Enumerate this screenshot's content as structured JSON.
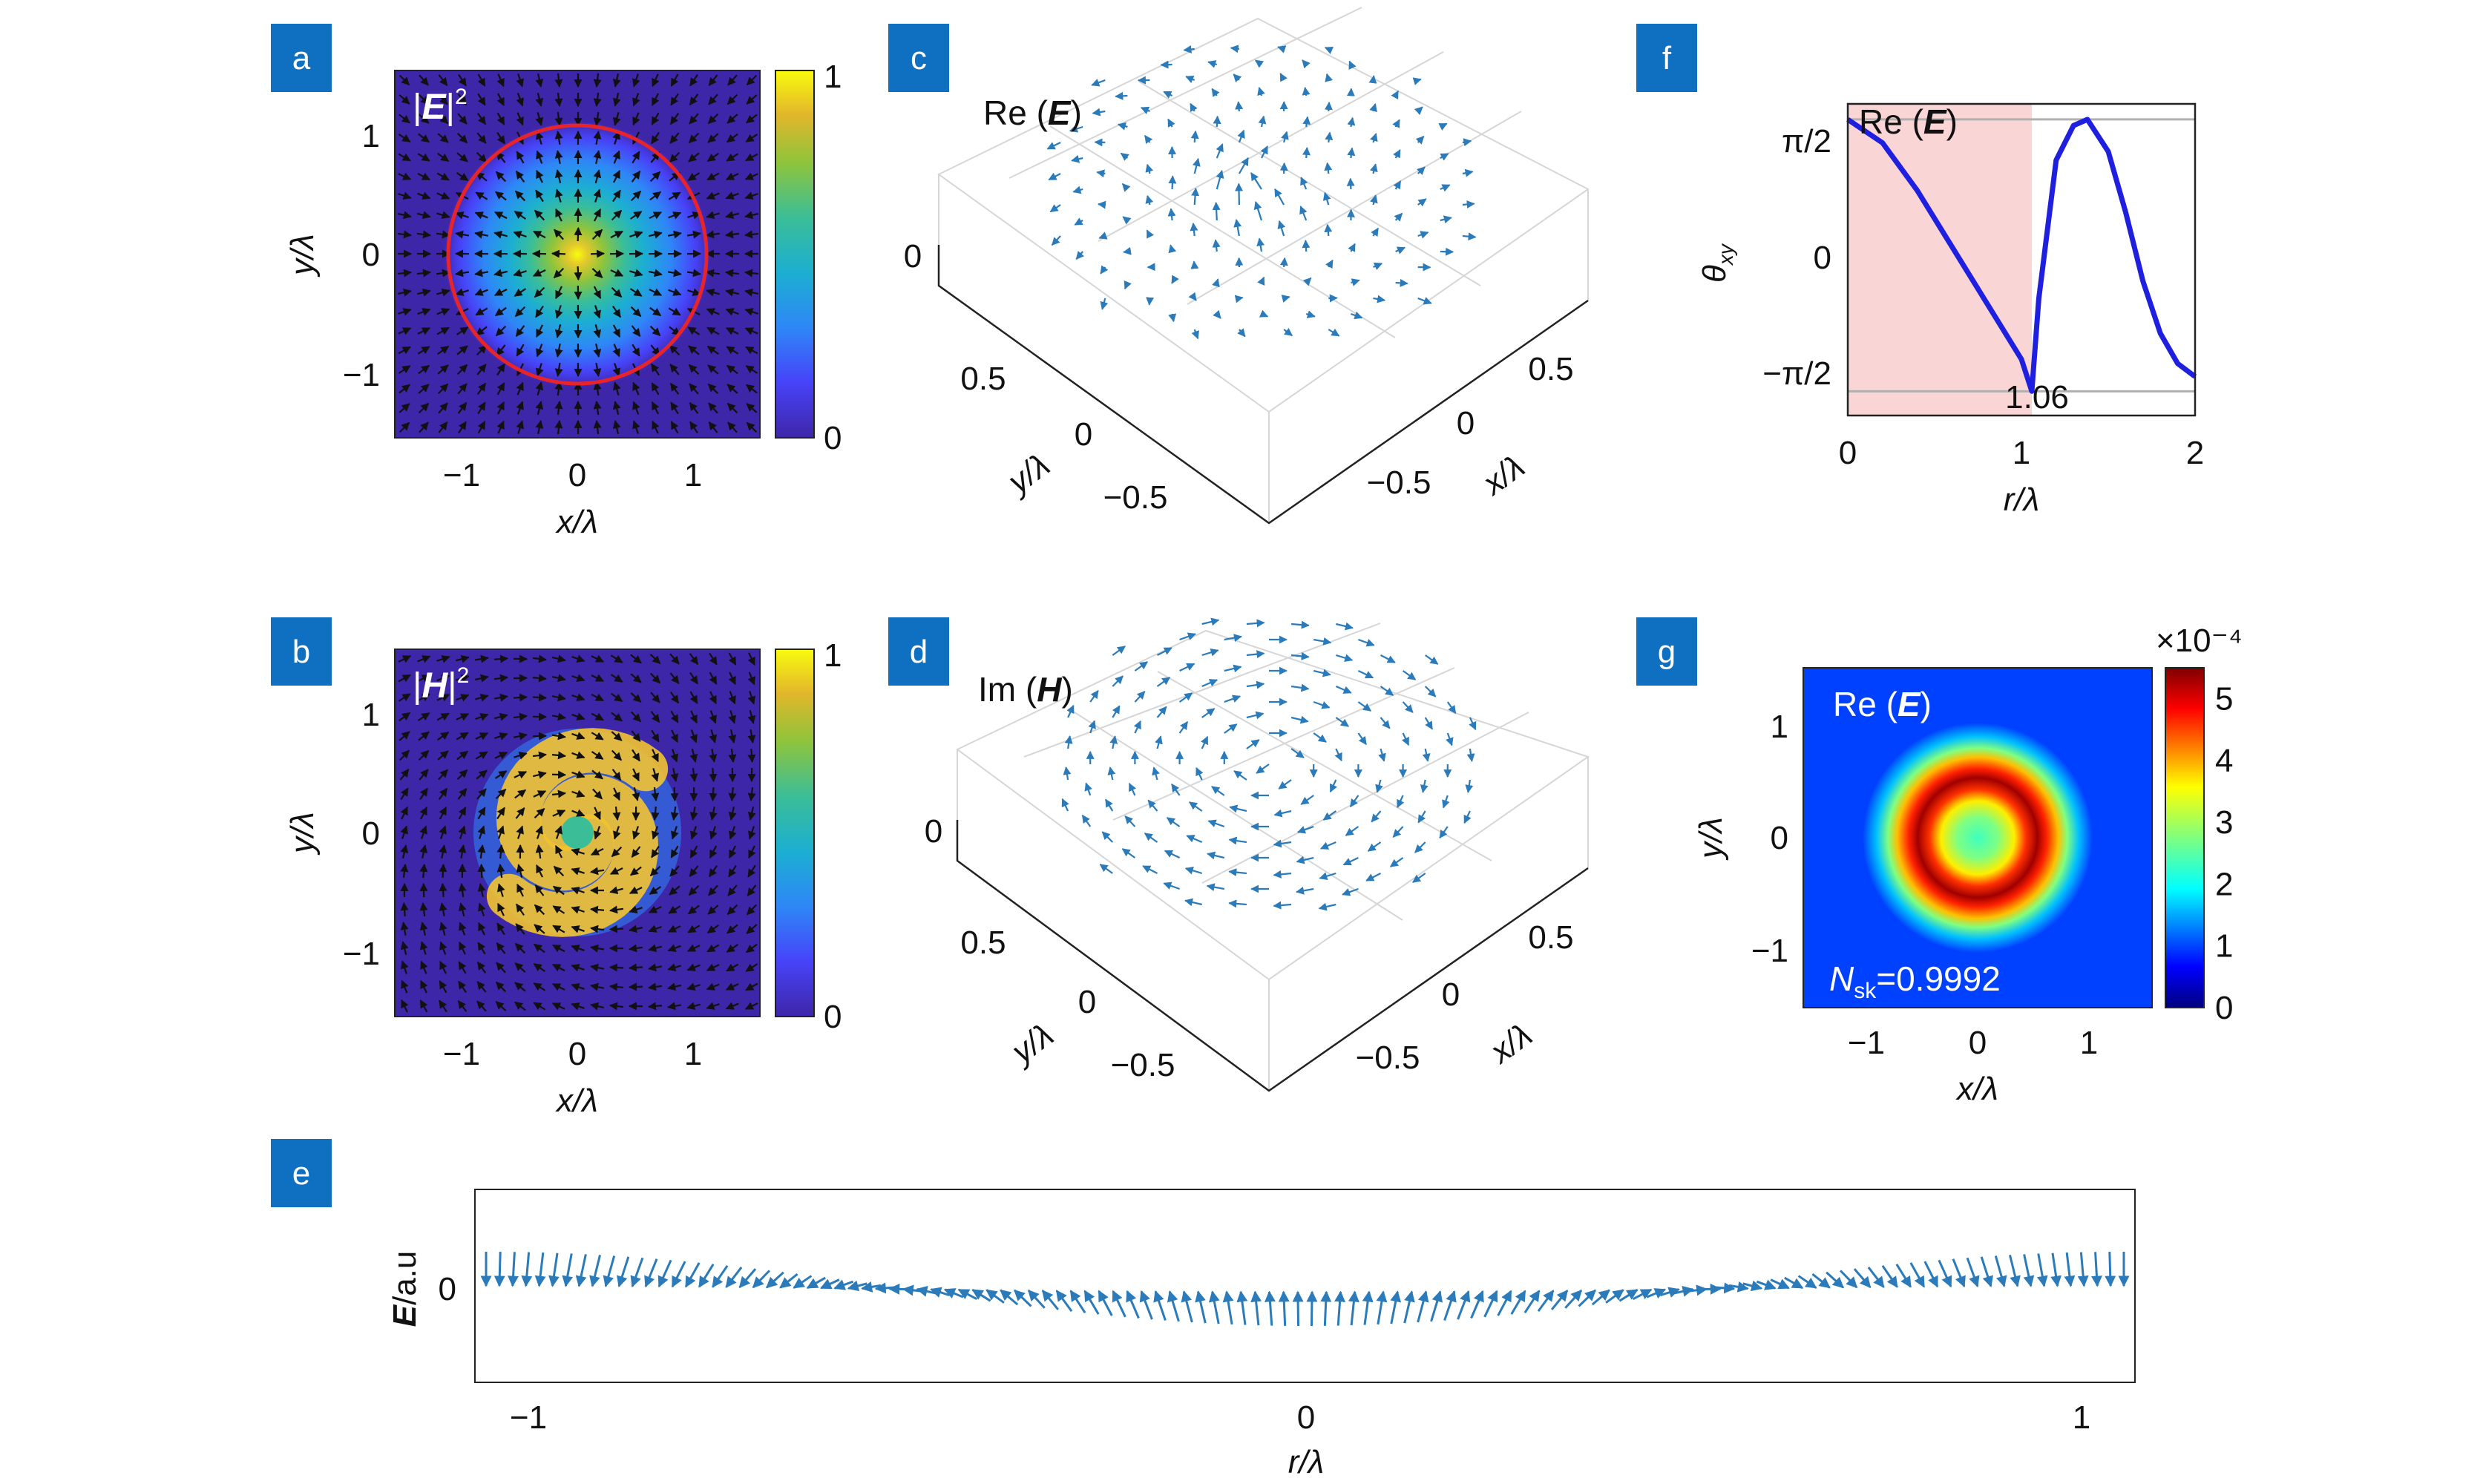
{
  "colors": {
    "badge": "#0f6fc0",
    "quiver_blue": "#2b7bba",
    "red_circle": "#e8242b",
    "theta_line": "#1f1fe0",
    "shade": "#f9d5d6",
    "parula": [
      "#3e26a8",
      "#4743f8",
      "#2e87f7",
      "#1cafd1",
      "#3bbe97",
      "#8fc43b",
      "#e2b62b",
      "#fcd52e",
      "#f9fb0e"
    ],
    "jet": [
      "#00007f",
      "#0000ff",
      "#007fff",
      "#00ffff",
      "#7fff7f",
      "#ffff00",
      "#ff7f00",
      "#ff0000",
      "#7f0000"
    ]
  },
  "panels": {
    "a": {
      "label": "a",
      "map_title_base": "|",
      "map_title_bold": "E",
      "map_title_close": "|",
      "map_title_sup": "2",
      "xlabel": "x/λ",
      "ylabel": "y/λ",
      "xticks": [
        "−1",
        "0",
        "1"
      ],
      "yticks": [
        "1",
        "0",
        "−1"
      ],
      "colorbar_ticks": [
        "1",
        "0"
      ],
      "field": "radial",
      "ring_radius_lambda": 1.06
    },
    "b": {
      "label": "b",
      "map_title_base": "|",
      "map_title_bold": "H",
      "map_title_close": "|",
      "map_title_sup": "2",
      "xlabel": "x/λ",
      "ylabel": "y/λ",
      "xticks": [
        "−1",
        "0",
        "1"
      ],
      "yticks": [
        "1",
        "0",
        "−1"
      ],
      "colorbar_ticks": [
        "1",
        "0"
      ],
      "field": "spiral"
    },
    "c": {
      "label": "c",
      "title_pre": "Re (",
      "title_bold": "E",
      "title_post": ")",
      "zticks": [
        "0"
      ],
      "yticks": [
        "0.5",
        "0",
        "−0.5"
      ],
      "xticks": [
        "0.5",
        "0",
        "−0.5"
      ],
      "ylabel": "y/λ",
      "xlabel": "x/λ"
    },
    "d": {
      "label": "d",
      "title_pre": "Im (",
      "title_bold": "H",
      "title_post": ")",
      "zticks": [
        "0"
      ],
      "yticks": [
        "0.5",
        "0",
        "−0.5"
      ],
      "xticks": [
        "0.5",
        "0",
        "−0.5"
      ],
      "ylabel": "y/λ",
      "xlabel": "x/λ"
    },
    "e": {
      "label": "e",
      "ylabel_bold": "E",
      "ylabel_rest": "/a.u",
      "yticks": [
        "0"
      ],
      "xticks": [
        "−1",
        "0",
        "1"
      ],
      "xlabel": "r/λ"
    },
    "f": {
      "label": "f",
      "ylabel": "θ",
      "ylabel_sub": "xy",
      "yticks": [
        "π/2",
        "0",
        "−π/2"
      ],
      "xticks": [
        "0",
        "1",
        "2"
      ],
      "xlabel": "r/λ",
      "shade_label_pre": "Re (",
      "shade_label_bold": "E",
      "shade_label_post": ")",
      "marker_label": "1.06"
    },
    "g": {
      "label": "g",
      "title_pre": "Re (",
      "title_bold": "E",
      "title_post": ")",
      "xlabel": "x/λ",
      "ylabel": "y/λ",
      "xticks": [
        "−1",
        "0",
        "1"
      ],
      "yticks": [
        "1",
        "0",
        "−1"
      ],
      "colorbar_ticks": [
        "5",
        "4",
        "3",
        "2",
        "1",
        "0"
      ],
      "colorbar_scale": "×10⁻⁴",
      "nsk_pre": "N",
      "nsk_sub": "sk",
      "nsk_post": "=0.9992"
    }
  },
  "chart_data": [
    {
      "type": "heatmap",
      "panel": "a",
      "title": "|E|²",
      "xlabel": "x/λ",
      "ylabel": "y/λ",
      "xlim": [
        -1.5,
        1.5
      ],
      "ylim": [
        -1.5,
        1.5
      ],
      "clim": [
        0,
        1
      ],
      "colormap": "parula",
      "overlay": "radial quiver field with red circle at r = 1.06λ"
    },
    {
      "type": "heatmap",
      "panel": "b",
      "title": "|H|²",
      "xlabel": "x/λ",
      "ylabel": "y/λ",
      "xlim": [
        -1.5,
        1.5
      ],
      "ylim": [
        -1.5,
        1.5
      ],
      "clim": [
        0,
        1
      ],
      "colormap": "parula",
      "overlay": "azimuthal spiral quiver field"
    },
    {
      "type": "scatter",
      "panel": "c",
      "title": "Re (E)",
      "xlabel": "x/λ",
      "ylabel": "y/λ",
      "xlim": [
        -0.75,
        0.75
      ],
      "ylim": [
        -0.75,
        0.75
      ],
      "note": "3D skyrmion vector field"
    },
    {
      "type": "scatter",
      "panel": "d",
      "title": "Im (H)",
      "xlabel": "x/λ",
      "ylabel": "y/λ",
      "xlim": [
        -0.75,
        0.75
      ],
      "ylim": [
        -0.75,
        0.75
      ],
      "note": "3D vortex vector field"
    },
    {
      "type": "line",
      "panel": "e",
      "xlabel": "r/λ",
      "ylabel": "E/a.u",
      "xlim": [
        -1.07,
        1.07
      ],
      "note": "vector arrows along r, pointing up near center and down at edges"
    },
    {
      "type": "line",
      "panel": "f",
      "xlabel": "r/λ",
      "ylabel": "θxy",
      "xlim": [
        0,
        2
      ],
      "ylim": [
        -1.85,
        1.75
      ],
      "shaded_region": [
        0,
        1.06
      ],
      "marker_x": 1.06,
      "series": [
        {
          "x": [
            0,
            0.2,
            0.4,
            0.6,
            0.8,
            1.0,
            1.06,
            1.1,
            1.2,
            1.3,
            1.38,
            1.5,
            1.6,
            1.7,
            1.8,
            1.9,
            2.0
          ],
          "y": [
            1.57,
            1.3,
            0.75,
            0.1,
            -0.55,
            -1.2,
            -1.57,
            -0.5,
            1.1,
            1.5,
            1.57,
            1.2,
            0.5,
            -0.3,
            -0.9,
            -1.25,
            -1.4
          ]
        }
      ]
    },
    {
      "type": "heatmap",
      "panel": "g",
      "title": "Re (E)",
      "xlabel": "x/λ",
      "ylabel": "y/λ",
      "xlim": [
        -1.5,
        1.5
      ],
      "ylim": [
        -1.5,
        1.5
      ],
      "clim": [
        0,
        5.5
      ],
      "colormap": "jet",
      "colorbar_scale": "×10⁻⁴",
      "annotation": "Nsk=0.9992"
    }
  ]
}
